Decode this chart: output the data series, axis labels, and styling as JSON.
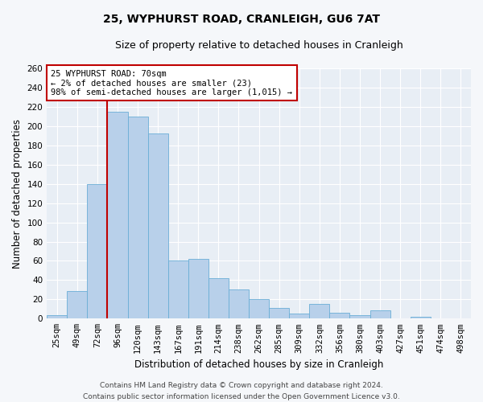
{
  "title": "25, WYPHURST ROAD, CRANLEIGH, GU6 7AT",
  "subtitle": "Size of property relative to detached houses in Cranleigh",
  "xlabel": "Distribution of detached houses by size in Cranleigh",
  "ylabel": "Number of detached properties",
  "categories": [
    "25sqm",
    "49sqm",
    "72sqm",
    "96sqm",
    "120sqm",
    "143sqm",
    "167sqm",
    "191sqm",
    "214sqm",
    "238sqm",
    "262sqm",
    "285sqm",
    "309sqm",
    "332sqm",
    "356sqm",
    "380sqm",
    "403sqm",
    "427sqm",
    "451sqm",
    "474sqm",
    "498sqm"
  ],
  "values": [
    4,
    29,
    140,
    215,
    210,
    192,
    60,
    62,
    42,
    30,
    20,
    11,
    5,
    15,
    6,
    4,
    9,
    0,
    2,
    0,
    0
  ],
  "bar_color": "#b8d0ea",
  "bar_edge_color": "#6aaed6",
  "highlight_color": "#c00000",
  "ylim": [
    0,
    260
  ],
  "yticks": [
    0,
    20,
    40,
    60,
    80,
    100,
    120,
    140,
    160,
    180,
    200,
    220,
    240,
    260
  ],
  "annotation_title": "25 WYPHURST ROAD: 70sqm",
  "annotation_line1": "← 2% of detached houses are smaller (23)",
  "annotation_line2": "98% of semi-detached houses are larger (1,015) →",
  "annotation_box_facecolor": "#ffffff",
  "annotation_box_edgecolor": "#c00000",
  "vline_x": 2.5,
  "footer_line1": "Contains HM Land Registry data © Crown copyright and database right 2024.",
  "footer_line2": "Contains public sector information licensed under the Open Government Licence v3.0.",
  "axes_facecolor": "#e8eef5",
  "fig_facecolor": "#f5f7fa",
  "grid_color": "#ffffff",
  "title_fontsize": 10,
  "subtitle_fontsize": 9,
  "axis_label_fontsize": 8.5,
  "tick_fontsize": 7.5,
  "annotation_fontsize": 7.5,
  "footer_fontsize": 6.5
}
